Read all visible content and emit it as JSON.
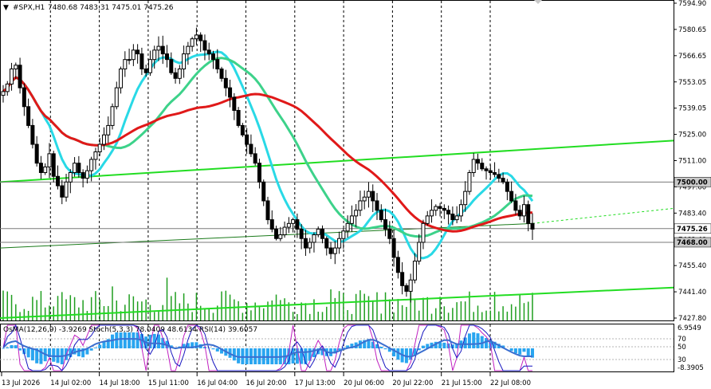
{
  "chart": {
    "symbol_label": "#SPX,H1",
    "ohlc_text": "7480.68 7483.31 7475.01 7475.26",
    "colors": {
      "background": "#ffffff",
      "candle": "#000000",
      "volume": "#1f9e1f",
      "ma_fast": "#29d9e6",
      "ma_mid": "#3dd28a",
      "ma_slow": "#e01919",
      "trendline": "#22dd22",
      "level_line": "#7a7a7a",
      "osma_bar": "#29a5f0",
      "stoch_main": "#1717c0",
      "stoch_signal": "#c020c0",
      "rsi_line": "#3b6fd0"
    },
    "price_axis": [
      "7594.90",
      "7580.65",
      "7566.65",
      "7553.05",
      "7539.05",
      "7525.00",
      "7511.00",
      "7497.00",
      "7483.40",
      "7469.40",
      "7455.40",
      "7441.40",
      "7427.80"
    ],
    "price_tags": [
      {
        "value": "7500.00",
        "style": "gray"
      },
      {
        "value": "7475.26",
        "style": "white"
      },
      {
        "value": "7468.00",
        "style": "gray"
      }
    ],
    "time_axis": [
      "13 Jul 2026",
      "14 Jul 02:00",
      "14 Jul 18:00",
      "15 Jul 11:00",
      "16 Jul 04:00",
      "16 Jul 20:00",
      "17 Jul 13:00",
      "20 Jul 06:00",
      "20 Jul 22:00",
      "21 Jul 15:00",
      "22 Jul 08:00"
    ]
  },
  "indicator": {
    "label": "OsMA(12,26,9) -3.9269  Stoch(5,3,3) 78.0409 48.6134  RSI(14) 39.6057",
    "axis": [
      "6.9549",
      "70",
      "50",
      "30",
      "-8.3905"
    ]
  },
  "chart_data": {
    "type": "candlestick",
    "title": "#SPX,H1",
    "ylim": [
      7427.8,
      7594.9
    ],
    "levels": [
      7500.0,
      7475.26,
      7468.0
    ],
    "close": [
      7548,
      7552,
      7560,
      7562,
      7550,
      7540,
      7530,
      7520,
      7510,
      7505,
      7508,
      7515,
      7503,
      7498,
      7492,
      7500,
      7505,
      7510,
      7505,
      7502,
      7506,
      7512,
      7516,
      7520,
      7525,
      7530,
      7540,
      7550,
      7560,
      7565,
      7565,
      7570,
      7568,
      7560,
      7558,
      7565,
      7570,
      7572,
      7568,
      7565,
      7558,
      7555,
      7560,
      7568,
      7572,
      7576,
      7578,
      7575,
      7570,
      7568,
      7565,
      7560,
      7555,
      7550,
      7545,
      7538,
      7530,
      7525,
      7520,
      7515,
      7510,
      7500,
      7490,
      7480,
      7475,
      7470,
      7472,
      7476,
      7478,
      7480,
      7475,
      7470,
      7465,
      7468,
      7472,
      7475,
      7470,
      7465,
      7462,
      7465,
      7470,
      7474,
      7478,
      7482,
      7485,
      7490,
      7492,
      7495,
      7490,
      7485,
      7480,
      7475,
      7470,
      7460,
      7452,
      7445,
      7442,
      7448,
      7458,
      7468,
      7478,
      7482,
      7485,
      7487,
      7486,
      7485,
      7483,
      7480,
      7482,
      7488,
      7495,
      7505,
      7512,
      7510,
      7507,
      7506,
      7505,
      7504,
      7502,
      7500,
      7495,
      7490,
      7485,
      7482,
      7488,
      7478,
      7475
    ],
    "osma_last": -3.9269,
    "stoch_main_last": 78.0409,
    "stoch_signal_last": 48.6134,
    "rsi_last": 39.6057
  }
}
